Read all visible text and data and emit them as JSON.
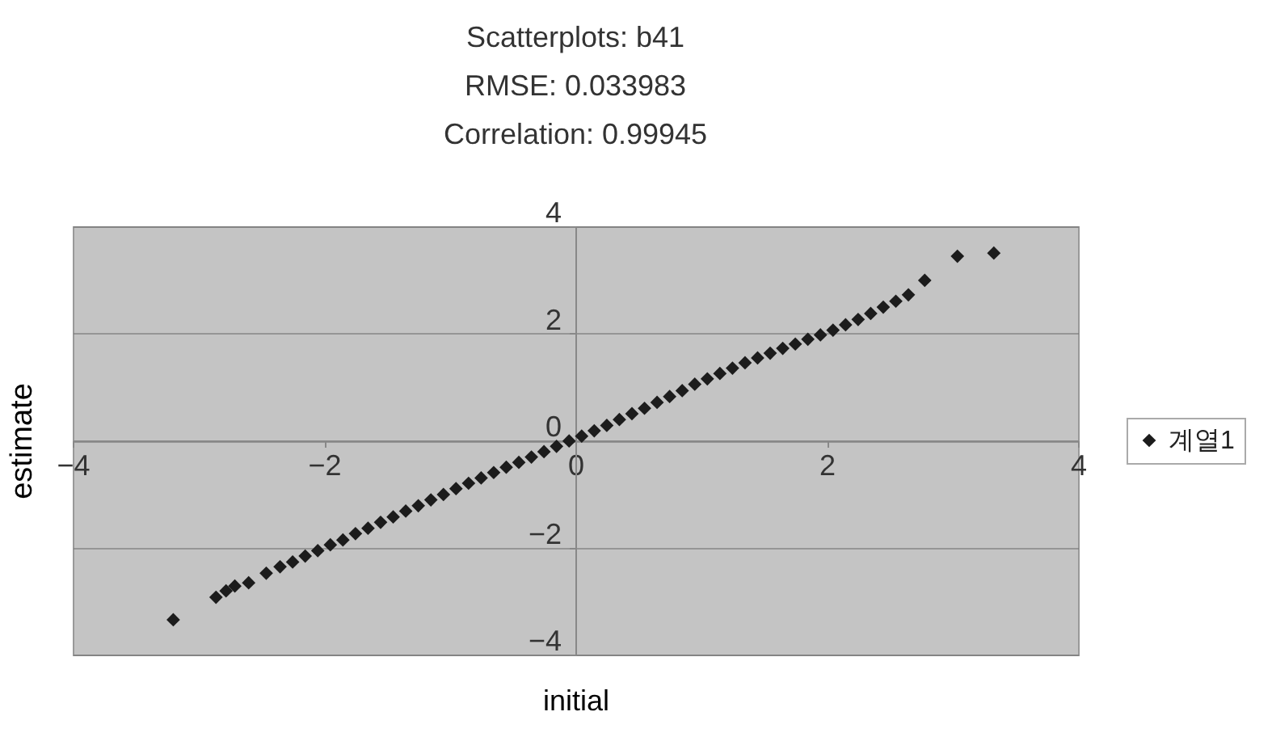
{
  "chart_data": {
    "type": "scatter",
    "title": "Scatterplots: b41\nRMSE: 0.033983\nCorrelation: 0.99945",
    "xlabel": "initial",
    "ylabel": "estimate",
    "xlim": [
      -4,
      4
    ],
    "ylim": [
      -4,
      4
    ],
    "xticks": [
      -4,
      -2,
      0,
      2,
      4
    ],
    "yticks": [
      -4,
      -2,
      0,
      2,
      4
    ],
    "grid": "y",
    "legend": "right",
    "marker": "diamond",
    "series": [
      {
        "name": "계열1",
        "color": "#1c1c1c",
        "x": [
          -3.2,
          -2.86,
          -2.78,
          -2.71,
          -2.6,
          -2.46,
          -2.35,
          -2.25,
          -2.15,
          -2.05,
          -1.95,
          -1.85,
          -1.75,
          -1.65,
          -1.55,
          -1.45,
          -1.35,
          -1.25,
          -1.15,
          -1.05,
          -0.95,
          -0.85,
          -0.75,
          -0.65,
          -0.55,
          -0.45,
          -0.35,
          -0.25,
          -0.15,
          -0.05,
          0.05,
          0.15,
          0.25,
          0.35,
          0.45,
          0.55,
          0.65,
          0.75,
          0.85,
          0.95,
          1.05,
          1.15,
          1.25,
          1.35,
          1.45,
          1.55,
          1.65,
          1.75,
          1.85,
          1.95,
          2.05,
          2.15,
          2.25,
          2.35,
          2.45,
          2.55,
          2.65,
          2.78,
          3.04,
          3.33
        ],
        "values": [
          -3.35,
          -2.93,
          -2.81,
          -2.72,
          -2.66,
          -2.48,
          -2.36,
          -2.27,
          -2.16,
          -2.06,
          -1.95,
          -1.86,
          -1.74,
          -1.64,
          -1.53,
          -1.43,
          -1.32,
          -1.22,
          -1.11,
          -1.01,
          -0.9,
          -0.8,
          -0.7,
          -0.6,
          -0.5,
          -0.41,
          -0.31,
          -0.21,
          -0.11,
          -0.01,
          0.08,
          0.18,
          0.28,
          0.39,
          0.5,
          0.6,
          0.71,
          0.82,
          0.93,
          1.05,
          1.15,
          1.25,
          1.35,
          1.45,
          1.54,
          1.63,
          1.72,
          1.8,
          1.89,
          1.97,
          2.06,
          2.16,
          2.26,
          2.37,
          2.49,
          2.6,
          2.72,
          2.99,
          3.44,
          3.5
        ]
      }
    ]
  }
}
